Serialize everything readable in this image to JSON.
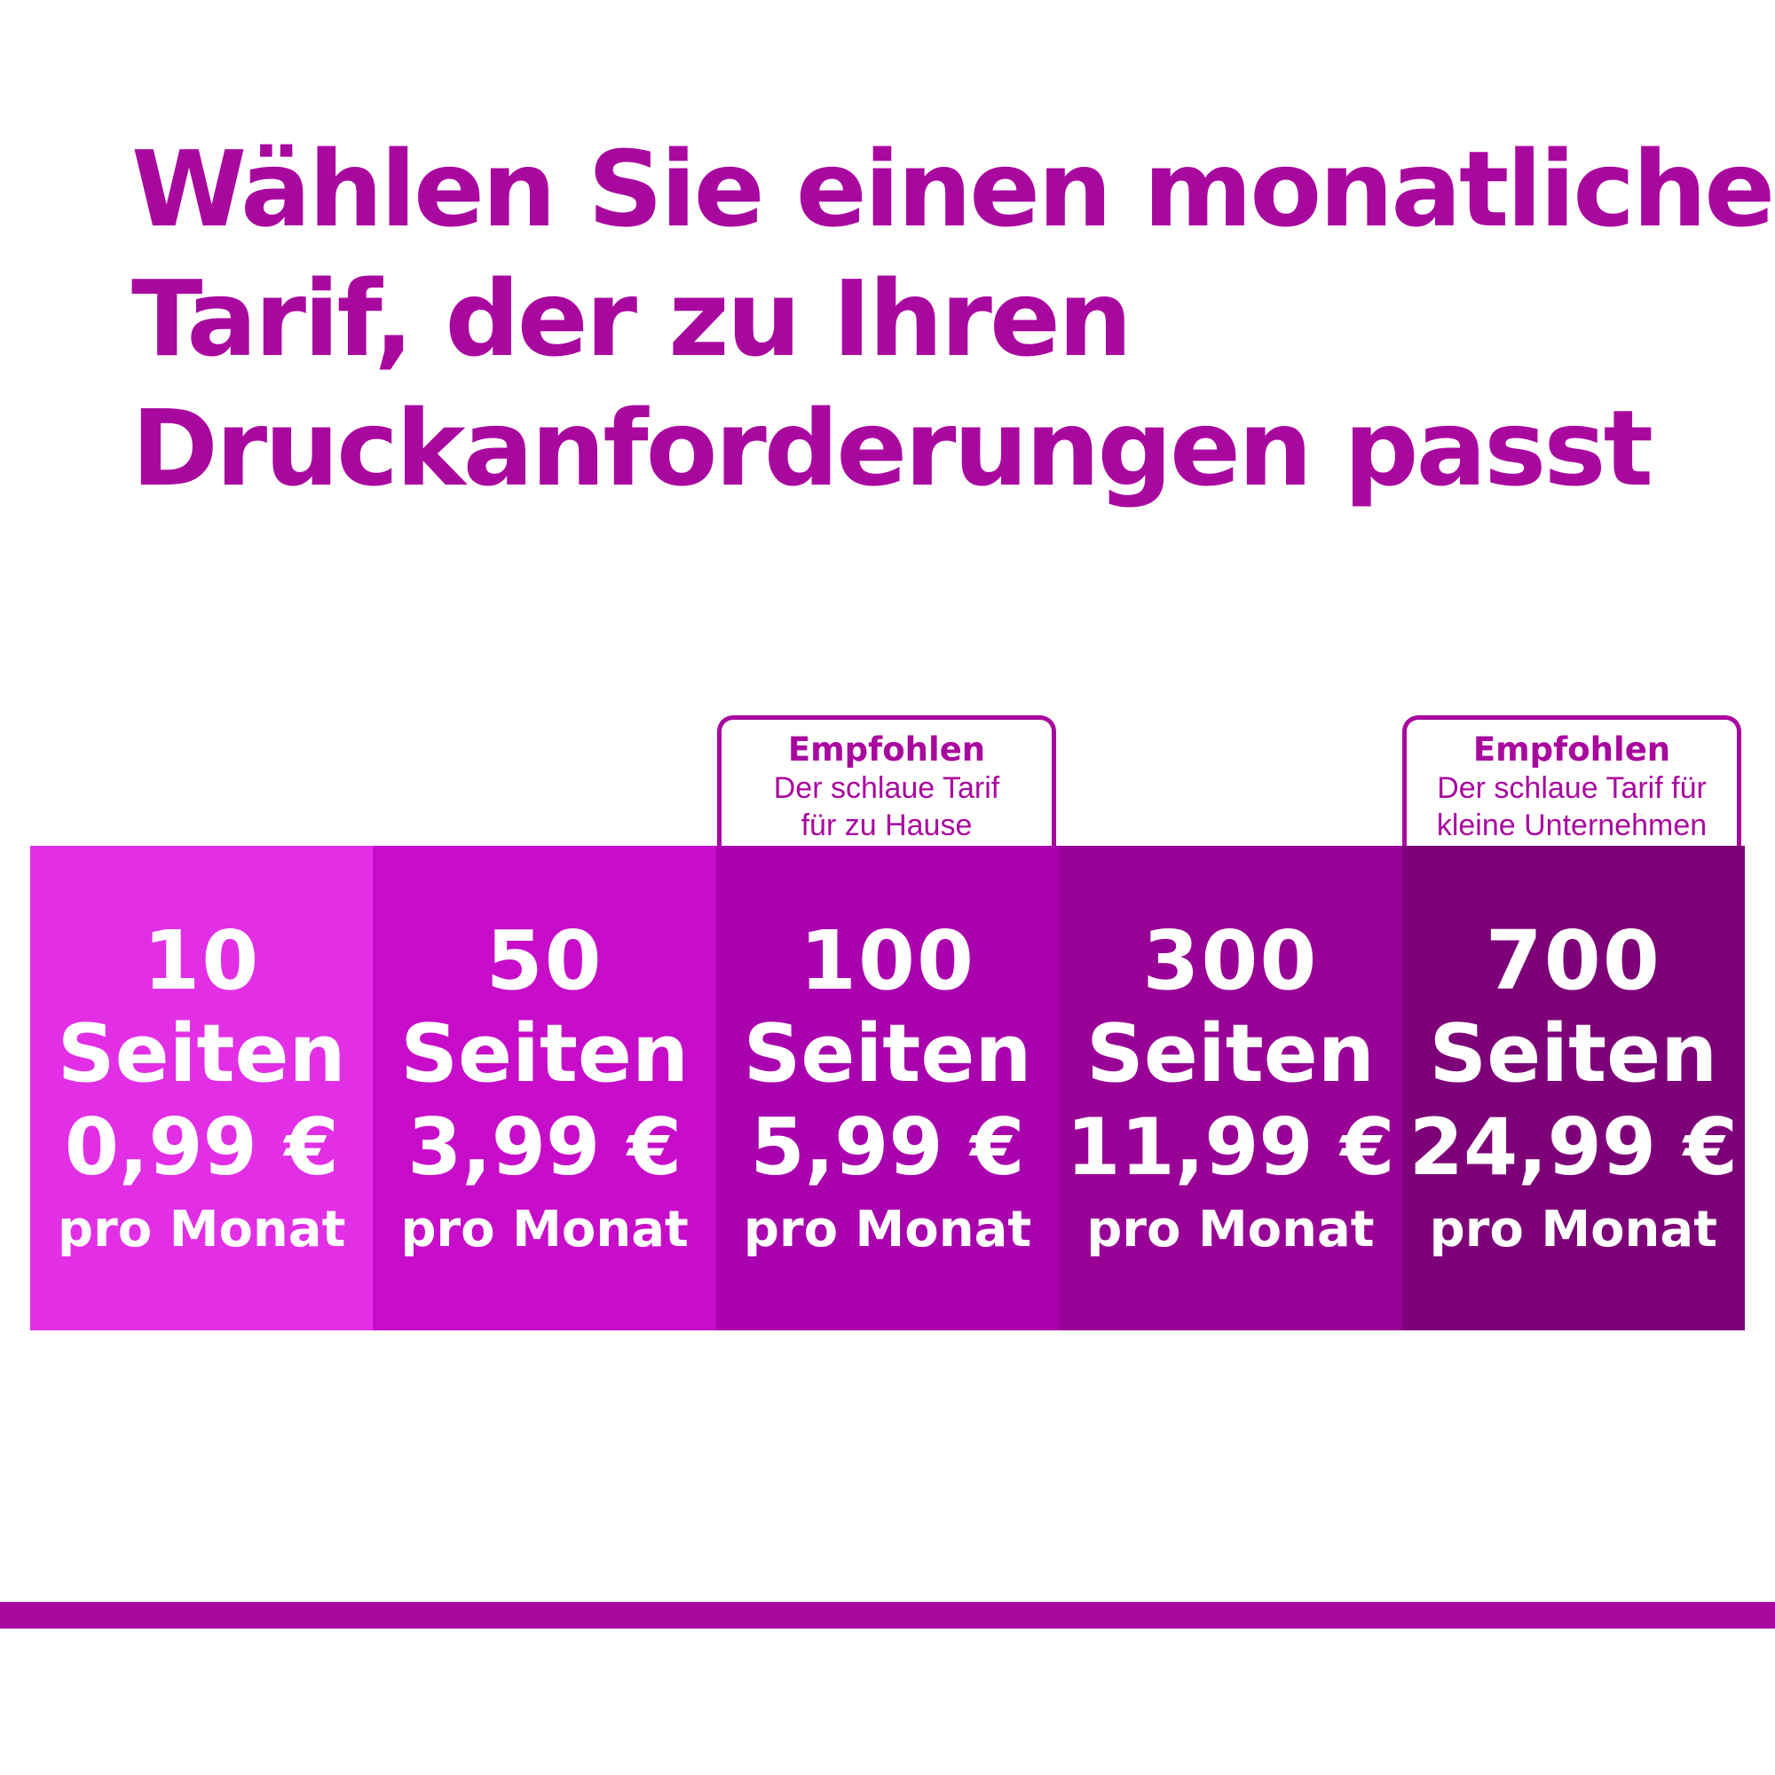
{
  "headline": {
    "line1": "Wählen Sie einen monatlichen",
    "line2": "Tarif, der zu Ihren",
    "line3": "Druckanforderungen passt"
  },
  "plans": [
    {
      "pages": "10",
      "unit": "Seiten",
      "price": "0,99 €",
      "period": "pro Monat",
      "color": "#e22fe6"
    },
    {
      "pages": "50",
      "unit": "Seiten",
      "price": "3,99 €",
      "period": "pro Monat",
      "color": "#c70dc9"
    },
    {
      "pages": "100",
      "unit": "Seiten",
      "price": "5,99 €",
      "period": "pro Monat",
      "color": "#a901ae"
    },
    {
      "pages": "300",
      "unit": "Seiten",
      "price": "11,99 €",
      "period": "pro Monat",
      "color": "#980096"
    },
    {
      "pages": "700",
      "unit": "Seiten",
      "price": "24,99 €",
      "period": "pro Monat",
      "color": "#7d0078"
    }
  ],
  "badges": {
    "home": {
      "title": "Empfohlen",
      "line1": "Der schlaue Tarif",
      "line2": "für zu Hause"
    },
    "business": {
      "title": "Empfohlen",
      "line1": "Der schlaue Tarif für",
      "line2": "kleine Unternehmen"
    }
  },
  "colors": {
    "brand": "#a9089f",
    "text_on_plan": "#ffffff"
  }
}
